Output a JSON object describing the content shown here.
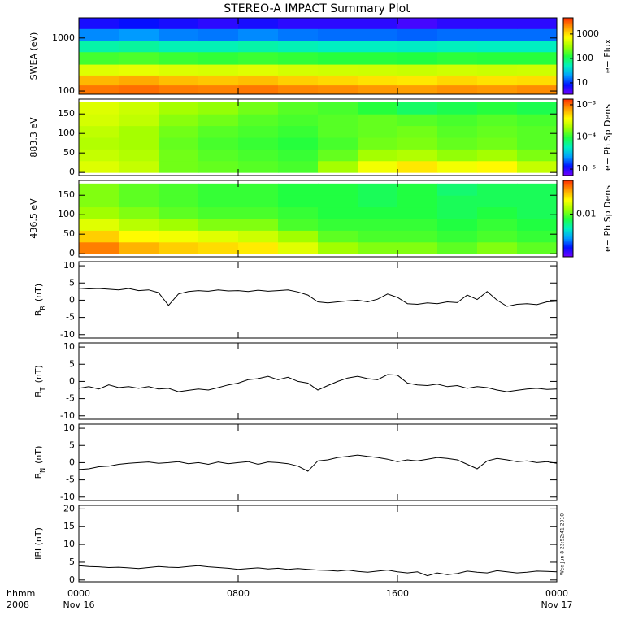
{
  "title": "STEREO-A IMPACT Summary Plot",
  "colormap": [
    "#7800ff",
    "#0010ff",
    "#00a0ff",
    "#00f0c0",
    "#20ff40",
    "#a0ff00",
    "#ffff00",
    "#ffa000",
    "#ff3000"
  ],
  "xaxis_label": [
    "hhmm",
    "2008"
  ],
  "timestamp": "Wed Jun  8 23:52:41 2010",
  "chart_data": [
    {
      "type": "heatmap",
      "ylabel": "SWEA (eV)",
      "ylog": true,
      "ylim": [
        87,
        2400
      ],
      "yticks": [
        100,
        1000
      ],
      "xlim": [
        0,
        24
      ],
      "x_edges": [
        0,
        2,
        4,
        6,
        8,
        10,
        12,
        14,
        16,
        18,
        20,
        22,
        24
      ],
      "y_edges": [
        87,
        130,
        200,
        320,
        550,
        900,
        1500,
        2400
      ],
      "zlabel": "e− Flux",
      "zlog": true,
      "zlim": [
        3.4,
        4600
      ],
      "zticks": [
        10,
        100,
        1000
      ],
      "values": [
        [
          2600,
          2800,
          2500,
          2400,
          2600,
          2300,
          2200,
          2000,
          1900,
          2100,
          2000,
          2200
        ],
        [
          1500,
          1700,
          1400,
          1300,
          1400,
          1200,
          1100,
          1000,
          950,
          1100,
          1000,
          1050
        ],
        [
          560,
          600,
          540,
          520,
          560,
          500,
          480,
          470,
          450,
          480,
          460,
          470
        ],
        [
          160,
          170,
          150,
          140,
          150,
          140,
          130,
          130,
          125,
          135,
          130,
          130
        ],
        [
          60,
          65,
          55,
          55,
          60,
          55,
          50,
          50,
          48,
          52,
          50,
          50
        ],
        [
          18,
          20,
          17,
          16,
          18,
          16,
          15,
          15,
          14,
          15,
          15,
          15
        ],
        [
          7,
          8,
          7,
          6,
          7,
          6,
          6,
          6,
          5,
          6,
          6,
          6
        ]
      ]
    },
    {
      "type": "heatmap",
      "ylabel": "883.3 eV",
      "ylim": [
        -8,
        188
      ],
      "yticks": [
        0,
        50,
        100,
        150
      ],
      "xlim": [
        0,
        24
      ],
      "x_edges": [
        0,
        2,
        4,
        6,
        8,
        10,
        12,
        14,
        16,
        18,
        20,
        22,
        24
      ],
      "y_edges": [
        0,
        30,
        60,
        90,
        120,
        150,
        180
      ],
      "zlabel": "e− Ph Sp Dens",
      "zlog": true,
      "zlim": [
        6.3e-06,
        0.0015
      ],
      "zticks": [
        {
          "value": 1e-05,
          "label": "10⁻⁵"
        },
        {
          "value": 0.0001,
          "label": "10⁻⁴"
        },
        {
          "value": 0.001,
          "label": "10⁻³"
        }
      ],
      "values": [
        [
          0.0003,
          0.00025,
          0.00015,
          0.00014,
          0.00013,
          0.00012,
          0.0002,
          0.00035,
          0.00045,
          0.00035,
          0.0004,
          0.00025
        ],
        [
          0.00025,
          0.00022,
          0.00015,
          0.00013,
          0.00012,
          0.00011,
          0.00014,
          0.0002,
          0.00022,
          0.00018,
          0.0002,
          0.00016
        ],
        [
          0.00022,
          0.0002,
          0.00014,
          0.00012,
          0.00011,
          0.0001,
          0.00012,
          0.00015,
          0.00016,
          0.00014,
          0.00015,
          0.00013
        ],
        [
          0.00024,
          0.0002,
          0.00015,
          0.00013,
          0.00012,
          0.00011,
          0.00013,
          0.00014,
          0.00015,
          0.00013,
          0.00014,
          0.00013
        ],
        [
          0.00028,
          0.00024,
          0.00017,
          0.00015,
          0.00013,
          0.00012,
          0.00013,
          0.00014,
          0.00013,
          0.00012,
          0.00013,
          0.00012
        ],
        [
          0.0003,
          0.00026,
          0.0002,
          0.00018,
          0.00015,
          0.00013,
          0.00012,
          0.0001,
          8e-05,
          9e-05,
          0.0001,
          9e-05
        ]
      ]
    },
    {
      "type": "heatmap",
      "ylabel": "436.5 eV",
      "ylim": [
        -8,
        188
      ],
      "yticks": [
        0,
        50,
        100,
        150
      ],
      "xlim": [
        0,
        24
      ],
      "x_edges": [
        0,
        2,
        4,
        6,
        8,
        10,
        12,
        14,
        16,
        18,
        20,
        22,
        24
      ],
      "y_edges": [
        0,
        30,
        60,
        90,
        120,
        150,
        180
      ],
      "zlabel": "e− Ph Sp Dens",
      "zlog": true,
      "zlim": [
        0.0022,
        0.033
      ],
      "zticks": [
        0.01
      ],
      "values": [
        [
          0.026,
          0.022,
          0.02,
          0.019,
          0.018,
          0.015,
          0.012,
          0.011,
          0.011,
          0.01,
          0.011,
          0.01
        ],
        [
          0.02,
          0.017,
          0.016,
          0.015,
          0.014,
          0.012,
          0.01,
          0.0095,
          0.0095,
          0.009,
          0.0095,
          0.009
        ],
        [
          0.015,
          0.013,
          0.012,
          0.011,
          0.011,
          0.0095,
          0.009,
          0.009,
          0.009,
          0.0085,
          0.009,
          0.0085
        ],
        [
          0.012,
          0.011,
          0.01,
          0.0095,
          0.0095,
          0.009,
          0.0085,
          0.0085,
          0.0085,
          0.008,
          0.0085,
          0.008
        ],
        [
          0.011,
          0.01,
          0.0095,
          0.009,
          0.009,
          0.0085,
          0.0085,
          0.008,
          0.0085,
          0.008,
          0.008,
          0.008
        ],
        [
          0.011,
          0.01,
          0.0095,
          0.009,
          0.009,
          0.0085,
          0.0085,
          0.008,
          0.0085,
          0.0075,
          0.008,
          0.008
        ]
      ]
    },
    {
      "type": "line",
      "ylabel": "B",
      "ylabel_sub": "R",
      "ylabel_unit": "(nT)",
      "ylim": [
        -11,
        11.2
      ],
      "yticks": [
        -10,
        -5,
        0,
        5,
        10
      ],
      "xlim": [
        0,
        24
      ],
      "x": [
        0,
        0.5,
        1,
        1.5,
        2,
        2.5,
        3,
        3.5,
        4,
        4.5,
        5,
        5.5,
        6,
        6.5,
        7,
        7.5,
        8,
        8.5,
        9,
        9.5,
        10,
        10.5,
        11,
        11.5,
        12,
        12.5,
        13,
        13.5,
        14,
        14.5,
        15,
        15.5,
        16,
        16.5,
        17,
        17.5,
        18,
        18.5,
        19,
        19.5,
        20,
        20.5,
        21,
        21.5,
        22,
        22.5,
        23,
        23.5,
        24
      ],
      "values": [
        3.5,
        3.3,
        3.4,
        3.2,
        3.0,
        3.4,
        2.8,
        3.0,
        2.2,
        -1.5,
        1.8,
        2.5,
        2.8,
        2.6,
        3.0,
        2.7,
        2.8,
        2.5,
        2.9,
        2.6,
        2.8,
        3.0,
        2.4,
        1.5,
        -0.5,
        -0.8,
        -0.5,
        -0.2,
        0.0,
        -0.5,
        0.3,
        1.8,
        0.8,
        -1.0,
        -1.2,
        -0.8,
        -1.0,
        -0.5,
        -0.7,
        1.5,
        0.2,
        2.5,
        0.0,
        -1.8,
        -1.2,
        -1.0,
        -1.3,
        -0.5,
        -0.3
      ]
    },
    {
      "type": "line",
      "ylabel": "B",
      "ylabel_sub": "T",
      "ylabel_unit": "(nT)",
      "ylim": [
        -11,
        11.2
      ],
      "yticks": [
        -10,
        -5,
        0,
        5,
        10
      ],
      "xlim": [
        0,
        24
      ],
      "x": [
        0,
        0.5,
        1,
        1.5,
        2,
        2.5,
        3,
        3.5,
        4,
        4.5,
        5,
        5.5,
        6,
        6.5,
        7,
        7.5,
        8,
        8.5,
        9,
        9.5,
        10,
        10.5,
        11,
        11.5,
        12,
        12.5,
        13,
        13.5,
        14,
        14.5,
        15,
        15.5,
        16,
        16.5,
        17,
        17.5,
        18,
        18.5,
        19,
        19.5,
        20,
        20.5,
        21,
        21.5,
        22,
        22.5,
        23,
        23.5,
        24
      ],
      "values": [
        -2.0,
        -1.5,
        -2.2,
        -1.0,
        -1.8,
        -1.5,
        -2.0,
        -1.5,
        -2.2,
        -2.0,
        -3.0,
        -2.6,
        -2.2,
        -2.5,
        -1.8,
        -1.0,
        -0.5,
        0.5,
        0.8,
        1.5,
        0.5,
        1.2,
        0.0,
        -0.5,
        -2.5,
        -1.2,
        0.0,
        1.0,
        1.5,
        0.8,
        0.5,
        2.0,
        1.8,
        -0.5,
        -1.0,
        -1.2,
        -0.8,
        -1.5,
        -1.2,
        -2.0,
        -1.5,
        -1.8,
        -2.5,
        -3.0,
        -2.6,
        -2.2,
        -2.0,
        -2.3,
        -2.2
      ]
    },
    {
      "type": "line",
      "ylabel": "B",
      "ylabel_sub": "N",
      "ylabel_unit": "(nT)",
      "ylim": [
        -11,
        11.2
      ],
      "yticks": [
        -10,
        -5,
        0,
        5,
        10
      ],
      "xlim": [
        0,
        24
      ],
      "x": [
        0,
        0.5,
        1,
        1.5,
        2,
        2.5,
        3,
        3.5,
        4,
        4.5,
        5,
        5.5,
        6,
        6.5,
        7,
        7.5,
        8,
        8.5,
        9,
        9.5,
        10,
        10.5,
        11,
        11.5,
        12,
        12.5,
        13,
        13.5,
        14,
        14.5,
        15,
        15.5,
        16,
        16.5,
        17,
        17.5,
        18,
        18.5,
        19,
        19.5,
        20,
        20.5,
        21,
        21.5,
        22,
        22.5,
        23,
        23.5,
        24
      ],
      "values": [
        -2.0,
        -1.8,
        -1.2,
        -1.0,
        -0.5,
        -0.2,
        0.0,
        0.2,
        -0.2,
        0.0,
        0.3,
        -0.3,
        0.0,
        -0.5,
        0.2,
        -0.3,
        0.0,
        0.3,
        -0.5,
        0.2,
        0.0,
        -0.3,
        -1.0,
        -2.5,
        0.5,
        0.8,
        1.5,
        1.8,
        2.2,
        1.8,
        1.5,
        1.0,
        0.3,
        0.8,
        0.5,
        1.0,
        1.5,
        1.2,
        0.8,
        -0.5,
        -1.8,
        0.5,
        1.2,
        0.8,
        0.3,
        0.5,
        0.0,
        0.3,
        -0.2
      ]
    },
    {
      "type": "line",
      "ylabel": "IBI (nT)",
      "ylim": [
        -0.5,
        21
      ],
      "yticks": [
        0,
        5,
        10,
        15,
        20
      ],
      "xlim": [
        0,
        24
      ],
      "x": [
        0,
        0.5,
        1,
        1.5,
        2,
        2.5,
        3,
        3.5,
        4,
        4.5,
        5,
        5.5,
        6,
        6.5,
        7,
        7.5,
        8,
        8.5,
        9,
        9.5,
        10,
        10.5,
        11,
        11.5,
        12,
        12.5,
        13,
        13.5,
        14,
        14.5,
        15,
        15.5,
        16,
        16.5,
        17,
        17.5,
        18,
        18.5,
        19,
        19.5,
        20,
        20.5,
        21,
        21.5,
        22,
        22.5,
        23,
        23.5,
        24
      ],
      "values": [
        4.0,
        3.8,
        3.7,
        3.5,
        3.6,
        3.4,
        3.2,
        3.5,
        3.8,
        3.6,
        3.5,
        3.8,
        4.0,
        3.7,
        3.5,
        3.3,
        3.0,
        3.2,
        3.4,
        3.1,
        3.3,
        3.0,
        3.2,
        3.0,
        2.8,
        2.7,
        2.5,
        2.8,
        2.4,
        2.2,
        2.5,
        2.8,
        2.3,
        2.0,
        2.3,
        1.2,
        2.0,
        1.5,
        1.8,
        2.5,
        2.2,
        2.0,
        2.6,
        2.3,
        2.0,
        2.2,
        2.5,
        2.4,
        2.3
      ],
      "xticks": [
        {
          "value": 0,
          "label": "0000"
        },
        {
          "value": 8,
          "label": "0800"
        },
        {
          "value": 16,
          "label": "1600"
        },
        {
          "value": 24,
          "label": "0000"
        }
      ],
      "xtick_dates": [
        {
          "value": 0,
          "label": "Nov 16"
        },
        {
          "value": 24,
          "label": "Nov 17"
        }
      ]
    }
  ]
}
